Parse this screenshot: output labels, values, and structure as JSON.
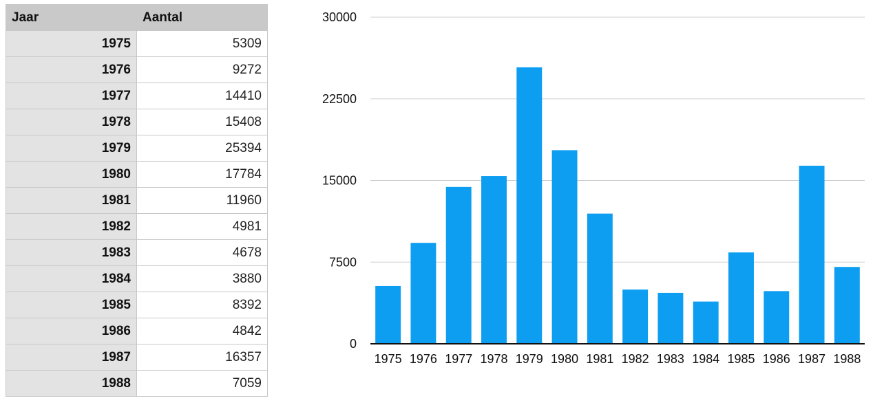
{
  "table": {
    "headers": [
      "Jaar",
      "Aantal"
    ],
    "rows": [
      [
        "1975",
        "5309"
      ],
      [
        "1976",
        "9272"
      ],
      [
        "1977",
        "14410"
      ],
      [
        "1978",
        "15408"
      ],
      [
        "1979",
        "25394"
      ],
      [
        "1980",
        "17784"
      ],
      [
        "1981",
        "11960"
      ],
      [
        "1982",
        "4981"
      ],
      [
        "1983",
        "4678"
      ],
      [
        "1984",
        "3880"
      ],
      [
        "1985",
        "8392"
      ],
      [
        "1986",
        "4842"
      ],
      [
        "1987",
        "16357"
      ],
      [
        "1988",
        "7059"
      ]
    ]
  },
  "chart_data": {
    "type": "bar",
    "categories": [
      "1975",
      "1976",
      "1977",
      "1978",
      "1979",
      "1980",
      "1981",
      "1982",
      "1983",
      "1984",
      "1985",
      "1986",
      "1987",
      "1988"
    ],
    "values": [
      5309,
      9272,
      14410,
      15408,
      25394,
      17784,
      11960,
      4981,
      4678,
      3880,
      8392,
      4842,
      16357,
      7059
    ],
    "title": "",
    "xlabel": "",
    "ylabel": "",
    "ylim": [
      0,
      30000
    ],
    "yticks": [
      "0",
      "7500",
      "15000",
      "22500",
      "30000"
    ],
    "grid": true,
    "bar_color": "#0d9ef2",
    "legend": "none"
  }
}
